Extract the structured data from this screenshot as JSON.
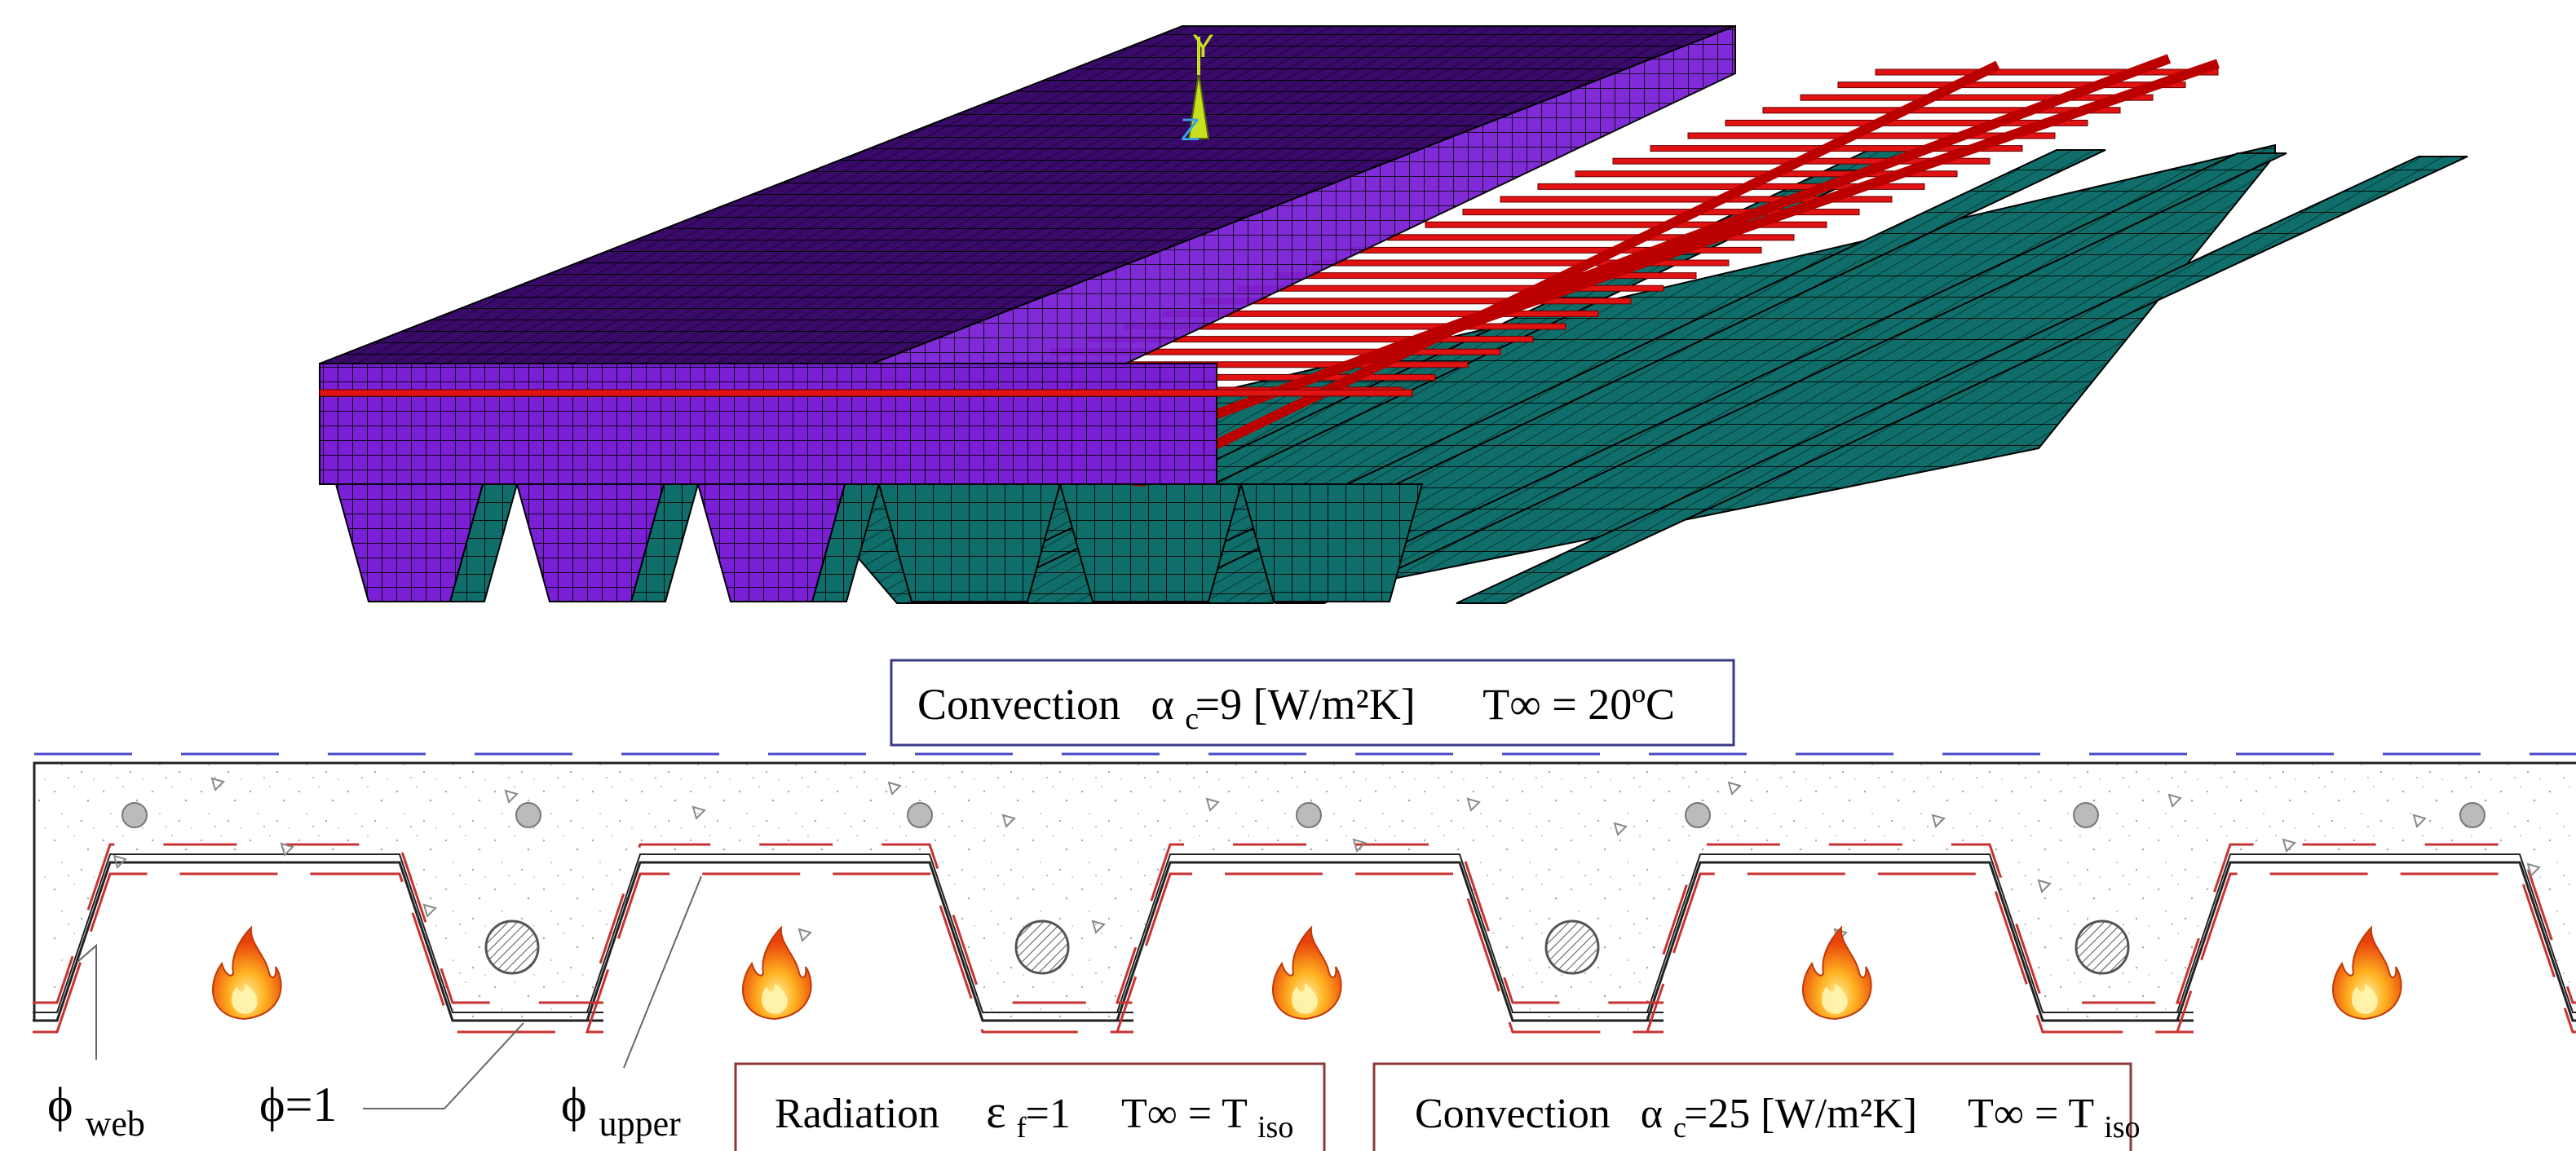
{
  "model_3d": {
    "axis_labels": {
      "y": "Y",
      "z": "Z"
    },
    "colors": {
      "concrete": "#7a1fd6",
      "concrete_top": "#3a0a6a",
      "steel_deck": "#0f6e6a",
      "rebar": "#e01212",
      "mesh_line": "#000000"
    }
  },
  "section_2d": {
    "convection_top": {
      "name": "Convection",
      "alpha": "α",
      "alpha_sub": "c",
      "value": "=9 [W/m²K]",
      "t_inf": "T∞",
      "t_value": "= 20ºC"
    },
    "radiation": {
      "name": "Radiation",
      "eps": "ε",
      "eps_sub": "f",
      "value": "=1",
      "t_inf": "T∞",
      "t_value": "= T",
      "t_sub": "iso"
    },
    "convection_bottom": {
      "name": "Convection",
      "alpha": "α",
      "alpha_sub": "c",
      "value": "=25 [W/m²K]",
      "t_inf": "T∞",
      "t_value": "= T",
      "t_sub": "iso"
    },
    "labels": {
      "phi_web": "ϕ",
      "phi_web_sub": "web",
      "phi_one": "ϕ=1",
      "phi_upper": "ϕ",
      "phi_upper_sub": "upper"
    },
    "colors": {
      "box_border": "#8b3a3a",
      "top_box_border": "#3a3a8a",
      "blue_dash": "#4a4ac8",
      "red_line": "#c83232",
      "deck_line": "#222222"
    }
  }
}
